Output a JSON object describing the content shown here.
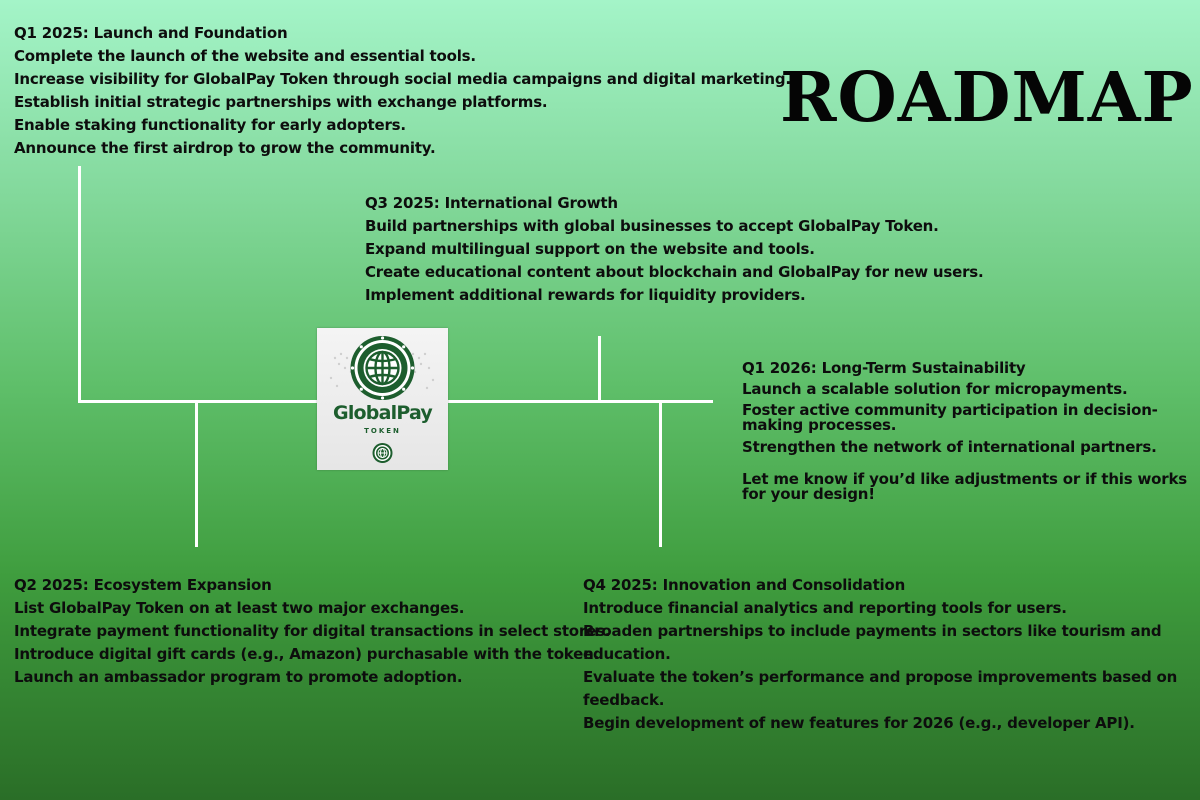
{
  "title": "ROADMAP",
  "logo": {
    "name": "GlobalPay",
    "subtitle": "TOKEN",
    "icon": "globe-icon",
    "color": "#1d5e2e"
  },
  "phases": [
    {
      "heading": "Q1 2025: Launch and Foundation",
      "items": [
        "Complete the launch of the website and essential tools.",
        "Increase visibility for GlobalPay Token through social media campaigns and digital marketing.",
        "Establish initial strategic partnerships with exchange platforms.",
        "Enable staking functionality for early adopters.",
        "Announce the first airdrop to grow the community."
      ]
    },
    {
      "heading": "Q3 2025: International Growth",
      "items": [
        "Build partnerships with global businesses to accept GlobalPay Token.",
        "Expand multilingual support on the website and tools.",
        "Create educational content about blockchain and GlobalPay for new users.",
        "Implement additional rewards for liquidity providers."
      ]
    },
    {
      "heading": "Q1 2026: Long-Term Sustainability",
      "items": [
        "Launch a scalable solution for micropayments.",
        "Foster active community participation in decision-making processes.",
        "Strengthen the network of international partners."
      ],
      "note": "Let me know if you’d like adjustments or if this works for your design!"
    },
    {
      "heading": "Q2 2025: Ecosystem Expansion",
      "items": [
        "List GlobalPay Token on at least two major exchanges.",
        "Integrate payment functionality for digital transactions in select stores.",
        "Introduce digital gift cards (e.g., Amazon) purchasable with the token.",
        "Launch an ambassador program to promote adoption."
      ]
    },
    {
      "heading": "Q4 2025: Innovation and Consolidation",
      "items": [
        "Introduce financial analytics and reporting tools for users.",
        "Broaden partnerships to include payments in sectors like tourism and education.",
        "Evaluate the token’s performance and propose improvements based on feedback.",
        "Begin development of new features for 2026 (e.g., developer API)."
      ]
    }
  ]
}
